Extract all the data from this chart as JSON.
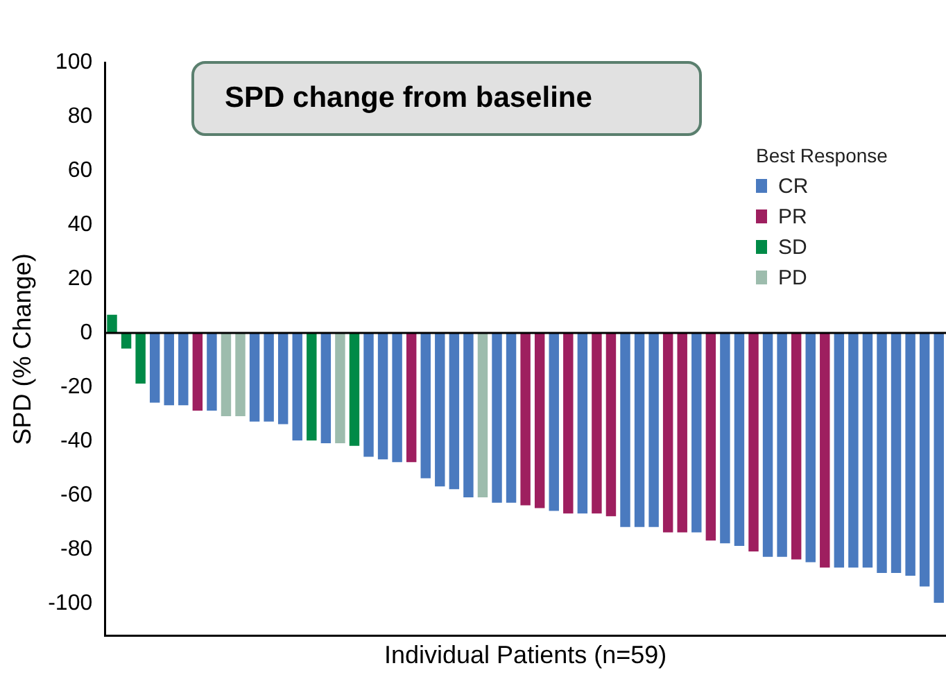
{
  "chart_data": {
    "type": "bar",
    "title": "SPD change from baseline",
    "xlabel": "Individual Patients (n=59)",
    "ylabel": "SPD (% Change)",
    "legend_title": "Best Response",
    "legend": "top right",
    "grid": false,
    "categories": [
      null,
      null,
      null,
      null,
      null,
      null,
      null,
      null,
      null,
      null,
      null,
      null,
      null,
      null,
      null,
      null,
      null,
      null,
      null,
      null,
      null,
      null,
      null,
      null,
      null,
      null,
      null,
      null,
      null,
      null,
      null,
      null,
      null,
      null,
      null,
      null,
      null,
      null,
      null,
      null,
      null,
      null,
      null,
      null,
      null,
      null,
      null,
      null,
      null,
      null,
      null,
      null,
      null,
      null,
      null,
      null,
      null,
      null,
      null
    ],
    "ylim": [
      -112,
      100
    ],
    "yticks": [
      -100,
      -80,
      -60,
      -40,
      -20,
      0,
      20,
      40,
      60,
      80,
      100
    ],
    "ref_lines": [
      {
        "axis": "y",
        "value": 0,
        "color": "#000000"
      }
    ],
    "series": [
      {
        "name": "CR",
        "color": "#4a7abf",
        "values": [
          null,
          null,
          null,
          -26,
          -27,
          -27,
          null,
          -29,
          null,
          null,
          -33,
          -33,
          -34,
          -40,
          null,
          -41,
          null,
          null,
          -46,
          -47,
          -48,
          null,
          -54,
          -57,
          -58,
          -61,
          null,
          -63,
          -63,
          null,
          null,
          -66,
          null,
          -67,
          null,
          null,
          -72,
          -72,
          -72,
          null,
          null,
          -74,
          null,
          -78,
          -79,
          null,
          -83,
          -83,
          null,
          -85,
          null,
          -87,
          -87,
          -87,
          -89,
          -89,
          -90,
          -94,
          -100
        ]
      },
      {
        "name": "PR",
        "color": "#9e1f5f",
        "values": [
          null,
          null,
          null,
          null,
          null,
          null,
          -29,
          null,
          null,
          null,
          null,
          null,
          null,
          null,
          null,
          null,
          null,
          null,
          null,
          null,
          null,
          -48,
          null,
          null,
          null,
          null,
          null,
          null,
          null,
          -64,
          -65,
          null,
          -67,
          null,
          -67,
          -68,
          null,
          null,
          null,
          -74,
          -74,
          null,
          -77,
          null,
          null,
          -81,
          null,
          null,
          -84,
          null,
          -87,
          null,
          null,
          null,
          null,
          null,
          null,
          null,
          null
        ]
      },
      {
        "name": "SD",
        "color": "#008a47",
        "values": [
          7,
          -6,
          -19,
          null,
          null,
          null,
          null,
          null,
          null,
          null,
          null,
          null,
          null,
          null,
          -40,
          null,
          null,
          -42,
          null,
          null,
          null,
          null,
          null,
          null,
          null,
          null,
          null,
          null,
          null,
          null,
          null,
          null,
          null,
          null,
          null,
          null,
          null,
          null,
          null,
          null,
          null,
          null,
          null,
          null,
          null,
          null,
          null,
          null,
          null,
          null,
          null,
          null,
          null,
          null,
          null,
          null,
          null,
          null,
          null
        ]
      },
      {
        "name": "PD",
        "color": "#9dbcad",
        "values": [
          null,
          null,
          null,
          null,
          null,
          null,
          null,
          null,
          -31,
          -31,
          null,
          null,
          null,
          null,
          null,
          null,
          -41,
          null,
          null,
          null,
          null,
          null,
          null,
          null,
          null,
          null,
          -61,
          null,
          null,
          null,
          null,
          null,
          null,
          null,
          null,
          null,
          null,
          null,
          null,
          null,
          null,
          null,
          null,
          null,
          null,
          null,
          null,
          null,
          null,
          null,
          null,
          null,
          null,
          null,
          null,
          null,
          null,
          null,
          null
        ]
      }
    ]
  }
}
